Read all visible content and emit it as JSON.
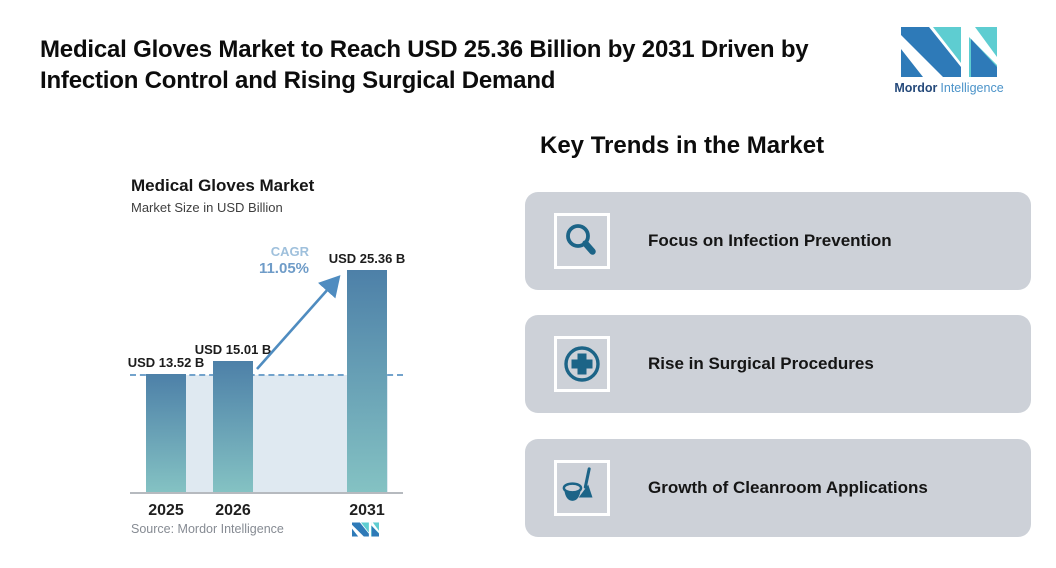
{
  "header": {
    "title_line1": "Medical Gloves Market to Reach USD 25.36 Billion by 2031 Driven by",
    "title_line2": "Infection Control and Rising Surgical Demand"
  },
  "brand": {
    "word_bold": "Mordor",
    "word_light": "Intelligence",
    "color_blue": "#2e7ab8",
    "color_teal": "#5ecdd1"
  },
  "chart_data": {
    "type": "bar",
    "title": "Medical Gloves Market",
    "subtitle": "Market Size in USD Billion",
    "categories": [
      "2025",
      "2026",
      "2031"
    ],
    "values": [
      13.52,
      15.01,
      25.36
    ],
    "value_labels": [
      "USD 13.52 B",
      "USD 15.01 B",
      "USD 25.36 B"
    ],
    "ylim": [
      0,
      26.5
    ],
    "grid": false,
    "reference_line_value": 13.52,
    "cagr": {
      "label": "CAGR",
      "value": "11.05%"
    },
    "bar_color_top": "#4d80a8",
    "bar_color_bottom": "#84c2c3",
    "reference_line_color": "#73a3cc",
    "shade_color": "#dfe9f1",
    "arrow_color": "#4f8cc0",
    "source": "Source: Mordor Intelligence"
  },
  "trends": {
    "heading": "Key Trends in the Market",
    "icon_color": "#1c6487",
    "cards": [
      {
        "icon": "search-icon",
        "label": "Focus on Infection Prevention"
      },
      {
        "icon": "medical-cross-icon",
        "label": "Rise in Surgical Procedures"
      },
      {
        "icon": "cleaning-icon",
        "label": "Growth of Cleanroom Applications"
      }
    ]
  }
}
